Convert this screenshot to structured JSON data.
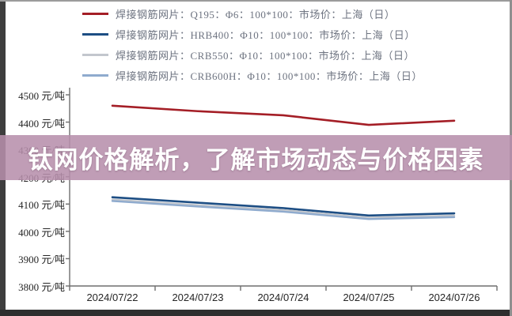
{
  "overlay": {
    "text": "钛网价格解析，了解市场动态与价格因素",
    "bg_rgba": "rgba(183,143,171,0.87)",
    "text_color": "#ffffff"
  },
  "chart_data": {
    "type": "line",
    "title": "",
    "xlabel": "",
    "ylabel": "元/吨",
    "categories": [
      "2024/07/22",
      "2024/07/23",
      "2024/07/24",
      "2024/07/25",
      "2024/07/26"
    ],
    "series": [
      {
        "name": "焊接钢筋网片：Q195：Φ6：100*100：市场价：上海（日）",
        "color": "#a41e26",
        "width": 2.6,
        "values": [
          4460,
          4440,
          4425,
          4390,
          4405
        ]
      },
      {
        "name": "焊接钢筋网片：HRB400：Φ10：100*100：市场价：上海（日）",
        "color": "#1d4e84",
        "width": 2.6,
        "values": [
          4125,
          4105,
          4085,
          4058,
          4066
        ]
      },
      {
        "name": "焊接钢筋网片：CRB550：Φ10：100*100：市场价：上海（日）",
        "color": "#c3c7cd",
        "width": 2.4,
        "values": [
          4116,
          4096,
          4078,
          4050,
          4058
        ]
      },
      {
        "name": "焊接钢筋网片：CRB600H：Φ10：100*100：市场价：上海（日）",
        "color": "#8fabce",
        "width": 2.4,
        "values": [
          4111,
          4091,
          4072,
          4045,
          4052
        ]
      }
    ],
    "y_ticks": [
      3800,
      3900,
      4000,
      4100,
      4200,
      4300,
      4400,
      4500
    ],
    "y_tick_labels": [
      "3800 元/吨",
      "3900 元/吨",
      "4000 元/吨",
      "4100 元/吨",
      "4200 元/吨",
      "4300 元/吨",
      "4400 元/吨",
      "4500 元/吨"
    ],
    "ylim": [
      3800,
      4500
    ],
    "grid": false,
    "legend_position": "top-left",
    "axis_color": "#6e6e6e",
    "tick_label_color": "#262626",
    "legend_text_color": "#6d7380"
  }
}
